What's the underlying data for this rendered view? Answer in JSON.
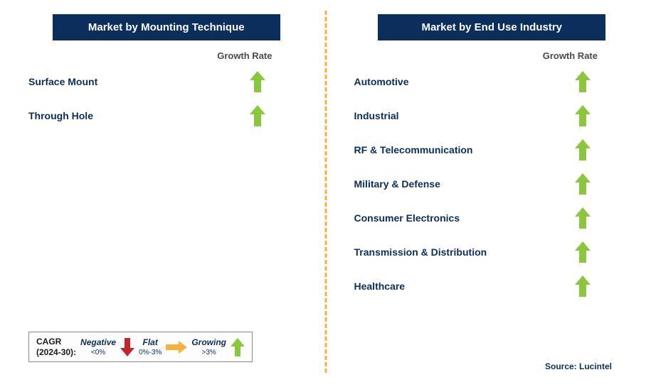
{
  "colors": {
    "header_bg": "#0b2e5c",
    "header_text": "#ffffff",
    "label_text": "#0b2e5c",
    "growth_text": "#4a4a4a",
    "arrow_green": "#8cc63f",
    "arrow_red": "#c1272d",
    "arrow_yellow": "#fbb03b",
    "divider": "#fbb03b",
    "source_text": "#0b2e5c",
    "legend_cagr": "#1a1a1a"
  },
  "divider_dashed": true,
  "left": {
    "header": "Market by Mounting Technique",
    "growth_header": "Growth Rate",
    "rows": [
      {
        "label": "Surface Mount",
        "growth": "growing"
      },
      {
        "label": "Through Hole",
        "growth": "growing"
      }
    ]
  },
  "right": {
    "header": "Market by End Use Industry",
    "growth_header": "Growth Rate",
    "rows": [
      {
        "label": "Automotive",
        "growth": "growing"
      },
      {
        "label": "Industrial",
        "growth": "growing"
      },
      {
        "label": "RF & Telecommunication",
        "growth": "growing"
      },
      {
        "label": "Military & Defense",
        "growth": "growing"
      },
      {
        "label": "Consumer Electronics",
        "growth": "growing"
      },
      {
        "label": "Transmission & Distribution",
        "growth": "growing"
      },
      {
        "label": "Healthcare",
        "growth": "growing"
      }
    ]
  },
  "legend": {
    "cagr_line1": "CAGR",
    "cagr_line2": "(2024-30):",
    "negative_label": "Negative",
    "negative_sub": "<0%",
    "flat_label": "Flat",
    "flat_sub": "0%-3%",
    "growing_label": "Growing",
    "growing_sub": ">3%"
  },
  "source": "Source: Lucintel"
}
